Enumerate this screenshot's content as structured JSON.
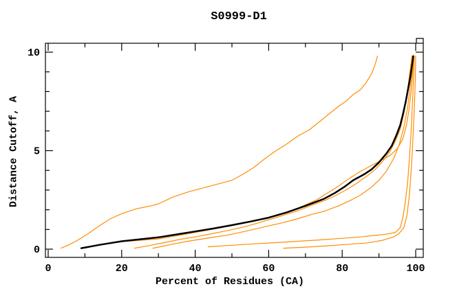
{
  "figure": {
    "title": "S0999-D1"
  },
  "chart_data": {
    "type": "line",
    "title": "S0999-D1",
    "xlabel": "Percent of Residues (CA)",
    "ylabel": "Distance Cutoff, A",
    "xlim": [
      0,
      100
    ],
    "ylim": [
      0,
      10
    ],
    "x_major_ticks": [
      0,
      20,
      40,
      60,
      80,
      100
    ],
    "x_minor_ticks": [
      10,
      30,
      50,
      70,
      90
    ],
    "y_major_ticks": [
      0,
      5,
      10
    ],
    "y_minor_ticks": [
      1,
      2,
      3,
      4,
      6,
      7,
      8,
      9
    ],
    "grid": false,
    "legend": "none",
    "frame": "box-with-mirrored-inward-ticks",
    "colors": {
      "main_curve": "#000000",
      "comparison_curves": "#ff8c00",
      "background": "#ffffff"
    },
    "series": [
      {
        "name": "orange-steep",
        "color": "#ff8c00",
        "width": 1.2,
        "points": [
          [
            3.5,
            0.05
          ],
          [
            6,
            0.25
          ],
          [
            8,
            0.45
          ],
          [
            11,
            0.8
          ],
          [
            14,
            1.2
          ],
          [
            17,
            1.55
          ],
          [
            20,
            1.8
          ],
          [
            24,
            2.05
          ],
          [
            28,
            2.2
          ],
          [
            30,
            2.3
          ],
          [
            34,
            2.65
          ],
          [
            38,
            2.9
          ],
          [
            40,
            3.0
          ],
          [
            44,
            3.2
          ],
          [
            47,
            3.35
          ],
          [
            50,
            3.5
          ],
          [
            53,
            3.8
          ],
          [
            56,
            4.15
          ],
          [
            59,
            4.6
          ],
          [
            62,
            5.0
          ],
          [
            65,
            5.35
          ],
          [
            68,
            5.75
          ],
          [
            71,
            6.05
          ],
          [
            74,
            6.5
          ],
          [
            77,
            6.95
          ],
          [
            79,
            7.25
          ],
          [
            81,
            7.5
          ],
          [
            83,
            7.85
          ],
          [
            85,
            8.1
          ],
          [
            86.5,
            8.45
          ],
          [
            88,
            8.9
          ],
          [
            89,
            9.4
          ],
          [
            89.6,
            9.8
          ]
        ]
      },
      {
        "name": "orange-2",
        "color": "#ff8c00",
        "width": 1.2,
        "points": [
          [
            10,
            0.05
          ],
          [
            15,
            0.25
          ],
          [
            20,
            0.38
          ],
          [
            25,
            0.45
          ],
          [
            30,
            0.52
          ],
          [
            35,
            0.68
          ],
          [
            40,
            0.85
          ],
          [
            45,
            1.02
          ],
          [
            50,
            1.2
          ],
          [
            55,
            1.38
          ],
          [
            60,
            1.58
          ],
          [
            65,
            1.85
          ],
          [
            70,
            2.25
          ],
          [
            73,
            2.5
          ],
          [
            76,
            2.85
          ],
          [
            79,
            3.2
          ],
          [
            82,
            3.6
          ],
          [
            85,
            3.95
          ],
          [
            87,
            4.15
          ],
          [
            89,
            4.35
          ],
          [
            91,
            4.55
          ],
          [
            93,
            4.75
          ],
          [
            95,
            5.1
          ],
          [
            96.5,
            5.6
          ],
          [
            97.5,
            6.3
          ],
          [
            98.2,
            7.1
          ],
          [
            98.8,
            8.1
          ],
          [
            99.2,
            9.0
          ],
          [
            99.5,
            9.8
          ]
        ]
      },
      {
        "name": "orange-3",
        "color": "#ff8c00",
        "width": 1.2,
        "points": [
          [
            23.5,
            0.05
          ],
          [
            28,
            0.2
          ],
          [
            32,
            0.35
          ],
          [
            36,
            0.5
          ],
          [
            40,
            0.62
          ],
          [
            45,
            0.8
          ],
          [
            49,
            0.95
          ],
          [
            53,
            1.12
          ],
          [
            57,
            1.32
          ],
          [
            61,
            1.55
          ],
          [
            65,
            1.78
          ],
          [
            68,
            1.95
          ],
          [
            72,
            2.25
          ],
          [
            75,
            2.45
          ],
          [
            78,
            2.7
          ],
          [
            81,
            3.0
          ],
          [
            84,
            3.35
          ],
          [
            87,
            3.75
          ],
          [
            89,
            4.05
          ],
          [
            91,
            4.45
          ],
          [
            93,
            4.95
          ],
          [
            94.5,
            5.5
          ],
          [
            95.8,
            6.1
          ],
          [
            96.8,
            6.9
          ],
          [
            97.6,
            7.8
          ],
          [
            98.2,
            8.7
          ],
          [
            98.7,
            9.4
          ],
          [
            99,
            9.8
          ]
        ]
      },
      {
        "name": "orange-4",
        "color": "#ff8c00",
        "width": 1.2,
        "points": [
          [
            28.5,
            0.05
          ],
          [
            33,
            0.22
          ],
          [
            38,
            0.4
          ],
          [
            44,
            0.58
          ],
          [
            49,
            0.72
          ],
          [
            54,
            0.92
          ],
          [
            60,
            1.18
          ],
          [
            64,
            1.35
          ],
          [
            68,
            1.55
          ],
          [
            72,
            1.78
          ],
          [
            75,
            1.92
          ],
          [
            79,
            2.2
          ],
          [
            82,
            2.45
          ],
          [
            85,
            2.75
          ],
          [
            88,
            3.15
          ],
          [
            90,
            3.5
          ],
          [
            92,
            3.95
          ],
          [
            94,
            4.6
          ],
          [
            95.5,
            5.3
          ],
          [
            96.8,
            6.2
          ],
          [
            97.8,
            7.2
          ],
          [
            98.6,
            8.4
          ],
          [
            99.2,
            9.2
          ],
          [
            99.6,
            9.8
          ]
        ]
      },
      {
        "name": "orange-flat-1",
        "color": "#ff8c00",
        "width": 1.2,
        "points": [
          [
            43.5,
            0.12
          ],
          [
            50,
            0.2
          ],
          [
            56,
            0.27
          ],
          [
            62,
            0.33
          ],
          [
            68,
            0.4
          ],
          [
            74,
            0.47
          ],
          [
            80,
            0.55
          ],
          [
            85,
            0.62
          ],
          [
            89,
            0.7
          ],
          [
            92,
            0.76
          ],
          [
            94.5,
            0.85
          ],
          [
            95.8,
            1.1
          ],
          [
            96.5,
            1.6
          ],
          [
            97.2,
            2.4
          ],
          [
            97.8,
            3.4
          ],
          [
            98.3,
            4.6
          ],
          [
            98.7,
            5.8
          ],
          [
            99,
            7.0
          ],
          [
            99.3,
            8.2
          ],
          [
            99.5,
            9.0
          ],
          [
            99.6,
            9.8
          ]
        ]
      },
      {
        "name": "orange-flat-2",
        "color": "#ff8c00",
        "width": 1.2,
        "points": [
          [
            64,
            0.05
          ],
          [
            70,
            0.1
          ],
          [
            76,
            0.17
          ],
          [
            82,
            0.25
          ],
          [
            87,
            0.32
          ],
          [
            91,
            0.45
          ],
          [
            94,
            0.62
          ],
          [
            95.5,
            0.8
          ],
          [
            96.8,
            1.1
          ],
          [
            97.6,
            1.7
          ],
          [
            98.2,
            2.6
          ],
          [
            98.7,
            3.8
          ],
          [
            99.1,
            5.0
          ],
          [
            99.4,
            6.2
          ],
          [
            99.7,
            7.5
          ],
          [
            99.9,
            8.7
          ],
          [
            100,
            9.8
          ]
        ]
      },
      {
        "name": "black-main",
        "color": "#000000",
        "width": 2.5,
        "points": [
          [
            9,
            0.05
          ],
          [
            14,
            0.22
          ],
          [
            20,
            0.4
          ],
          [
            25,
            0.5
          ],
          [
            30,
            0.6
          ],
          [
            35,
            0.75
          ],
          [
            40,
            0.9
          ],
          [
            45,
            1.05
          ],
          [
            50,
            1.22
          ],
          [
            55,
            1.4
          ],
          [
            60,
            1.6
          ],
          [
            65,
            1.87
          ],
          [
            70,
            2.2
          ],
          [
            75,
            2.55
          ],
          [
            78,
            2.85
          ],
          [
            80.5,
            3.15
          ],
          [
            83,
            3.5
          ],
          [
            86,
            3.8
          ],
          [
            88,
            4.05
          ],
          [
            90,
            4.4
          ],
          [
            92,
            4.85
          ],
          [
            93.5,
            5.25
          ],
          [
            94.8,
            5.8
          ],
          [
            95.8,
            6.3
          ],
          [
            96.6,
            6.9
          ],
          [
            97.3,
            7.5
          ],
          [
            98,
            8.2
          ],
          [
            98.5,
            8.7
          ],
          [
            98.9,
            9.2
          ],
          [
            99.2,
            9.6
          ],
          [
            99.3,
            9.8
          ]
        ]
      }
    ]
  }
}
